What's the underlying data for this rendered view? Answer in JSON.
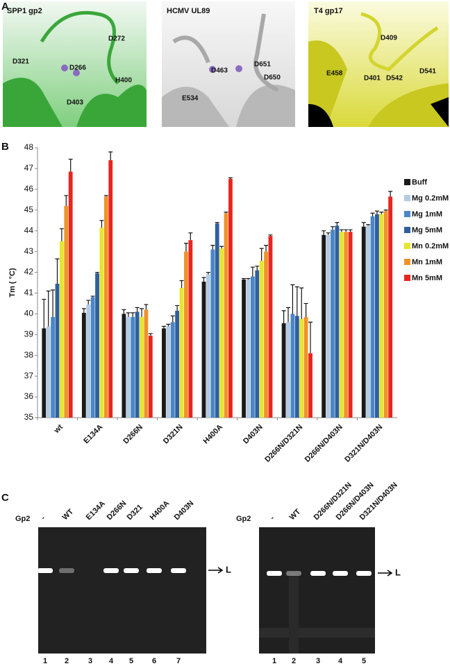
{
  "panel_a": {
    "label": "A",
    "structures": [
      {
        "title": "SPP1 gp2",
        "residues": [
          "D272",
          "D321",
          "D266",
          "H400",
          "D403"
        ]
      },
      {
        "title": "HCMV UL89",
        "residues": [
          "D463",
          "D651",
          "D650",
          "E534"
        ]
      },
      {
        "title": "T4 gp17",
        "residues": [
          "D409",
          "E458",
          "D401",
          "D542",
          "D541"
        ]
      }
    ]
  },
  "chart_data": {
    "type": "bar",
    "panel_label": "B",
    "ylabel": "Tm ( °C)",
    "categories": [
      "wt",
      "E134A",
      "D266N",
      "D321N",
      "H400A",
      "D403N",
      "D266N/D321N",
      "D266N/D403N",
      "D321N/D403N"
    ],
    "ylim": [
      35,
      48
    ],
    "yticks": [
      35,
      36,
      37,
      38,
      39,
      40,
      41,
      42,
      43,
      44,
      45,
      46,
      47,
      48
    ],
    "series": [
      {
        "name": "Buff",
        "color": "#1a1a1a",
        "values": [
          39.3,
          40.05,
          40.0,
          39.3,
          41.55,
          41.65,
          39.55,
          43.8,
          44.2
        ],
        "errors": [
          1.4,
          0.2,
          0.2,
          0.1,
          0.2,
          0.05,
          0.6,
          0.2,
          0.2
        ]
      },
      {
        "name": "Mg 0.2mM",
        "color": "#b3cbe3",
        "values": [
          39.4,
          40.45,
          39.85,
          39.4,
          41.9,
          41.65,
          39.6,
          43.8,
          44.25
        ],
        "errors": [
          1.7,
          0.2,
          0.2,
          0.1,
          0.1,
          0.05,
          0.7,
          0.1,
          0.05
        ]
      },
      {
        "name": "Mg 1mM",
        "color": "#4a86c8",
        "values": [
          39.85,
          40.8,
          39.85,
          39.6,
          43.1,
          41.8,
          40.0,
          44.05,
          44.7
        ],
        "errors": [
          1.3,
          0.05,
          0.2,
          0.3,
          0.2,
          0.45,
          1.4,
          0.15,
          0.15
        ]
      },
      {
        "name": "Mg 5mM",
        "color": "#2f5f9e",
        "values": [
          41.45,
          41.95,
          40.1,
          40.15,
          44.35,
          42.1,
          39.9,
          44.25,
          44.8
        ],
        "errors": [
          1.2,
          0.05,
          0.2,
          0.25,
          0.05,
          0.2,
          1.4,
          0.15,
          0.15
        ]
      },
      {
        "name": "Mn 0.2mM",
        "color": "#e6e62a",
        "values": [
          43.5,
          44.15,
          39.85,
          41.25,
          43.15,
          42.55,
          39.75,
          43.95,
          44.8
        ],
        "errors": [
          0.6,
          0.35,
          0.4,
          0.35,
          0.1,
          0.6,
          1.5,
          0.1,
          0.1
        ]
      },
      {
        "name": "Mn 1mM",
        "color": "#f0922a",
        "values": [
          45.2,
          45.65,
          40.2,
          43.0,
          44.85,
          43.0,
          39.85,
          43.95,
          44.95
        ],
        "errors": [
          0.5,
          0.05,
          0.25,
          0.4,
          0.05,
          0.3,
          0.65,
          0.1,
          0.05
        ]
      },
      {
        "name": "Mn 5mM",
        "color": "#e8251f",
        "values": [
          46.85,
          47.4,
          38.95,
          43.55,
          46.5,
          43.75,
          38.1,
          43.95,
          45.65
        ],
        "errors": [
          0.6,
          0.4,
          0.1,
          0.35,
          0.05,
          0.05,
          1.5,
          0.1,
          0.25
        ]
      }
    ]
  },
  "panel_c": {
    "label": "C",
    "gels": [
      {
        "row_label": "Gp2",
        "lanes": [
          "-",
          "WT",
          "E134A",
          "D266N",
          "D321",
          "H400A",
          "D403N"
        ],
        "lane_numbers": [
          "1",
          "2",
          "3",
          "4",
          "5",
          "6",
          "7"
        ],
        "band_label": "L"
      },
      {
        "row_label": "Gp2",
        "lanes": [
          "-",
          "WT",
          "D266N/D321N",
          "D266N/D403N",
          "D321N/D403N"
        ],
        "lane_numbers": [
          "1",
          "2",
          "3",
          "4",
          "5"
        ],
        "band_label": "L"
      }
    ]
  }
}
